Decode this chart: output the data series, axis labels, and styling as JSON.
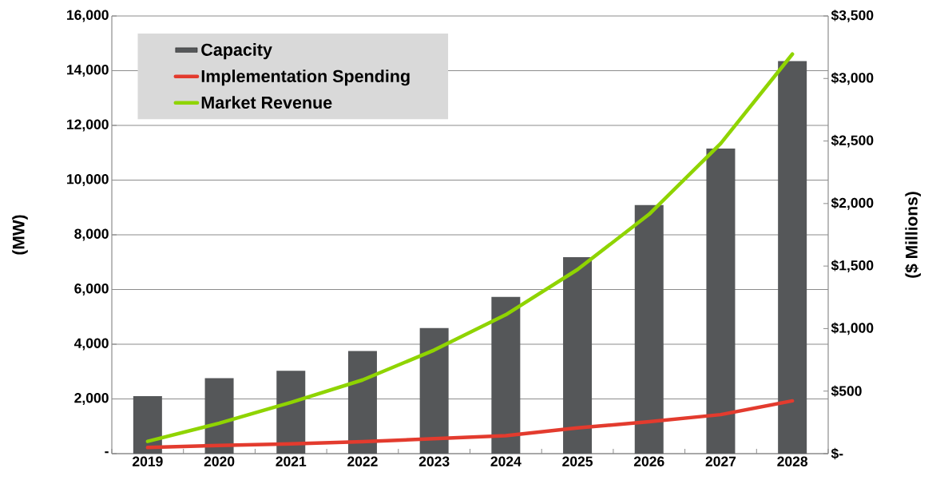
{
  "chart_data": {
    "type": "bar",
    "categories": [
      "2019",
      "2020",
      "2021",
      "2022",
      "2023",
      "2024",
      "2025",
      "2026",
      "2027",
      "2028"
    ],
    "series": [
      {
        "name": "Capacity",
        "color": "#555759",
        "values": [
          2100,
          2760,
          3030,
          3750,
          4590,
          5730,
          7180,
          9090,
          11150,
          14350
        ]
      },
      {
        "name": "Implementation Spending",
        "type": "line",
        "axis": "y2",
        "color": "#e33b2e",
        "values": [
          49,
          66,
          78,
          95,
          120,
          144,
          206,
          255,
          312,
          422
        ]
      },
      {
        "name": "Market Revenue",
        "type": "line",
        "axis": "y2",
        "color": "#8fd400",
        "values": [
          98,
          243,
          410,
          589,
          828,
          1111,
          1472,
          1914,
          2480,
          3195
        ]
      }
    ],
    "ylabel": "(MW)",
    "y2label": "($ Millions)",
    "ylim": [
      0,
      16000
    ],
    "yticks": [
      {
        "value": 0,
        "label": "-"
      },
      {
        "value": 2000,
        "label": "2,000"
      },
      {
        "value": 4000,
        "label": "4,000"
      },
      {
        "value": 6000,
        "label": "6,000"
      },
      {
        "value": 8000,
        "label": "8,000"
      },
      {
        "value": 10000,
        "label": "10,000"
      },
      {
        "value": 12000,
        "label": "12,000"
      },
      {
        "value": 14000,
        "label": "14,000"
      },
      {
        "value": 16000,
        "label": "16,000"
      }
    ],
    "y2lim": [
      0,
      3500
    ],
    "y2ticks": [
      {
        "value": 0,
        "label": "$-"
      },
      {
        "value": 500,
        "label": "$500"
      },
      {
        "value": 1000,
        "label": "$1,000"
      },
      {
        "value": 1500,
        "label": "$1,500"
      },
      {
        "value": 2000,
        "label": "$2,000"
      },
      {
        "value": 2500,
        "label": "$2,500"
      },
      {
        "value": 3000,
        "label": "$3,000"
      },
      {
        "value": 3500,
        "label": "$3,500"
      }
    ],
    "grid": "y",
    "legend": "top left"
  }
}
